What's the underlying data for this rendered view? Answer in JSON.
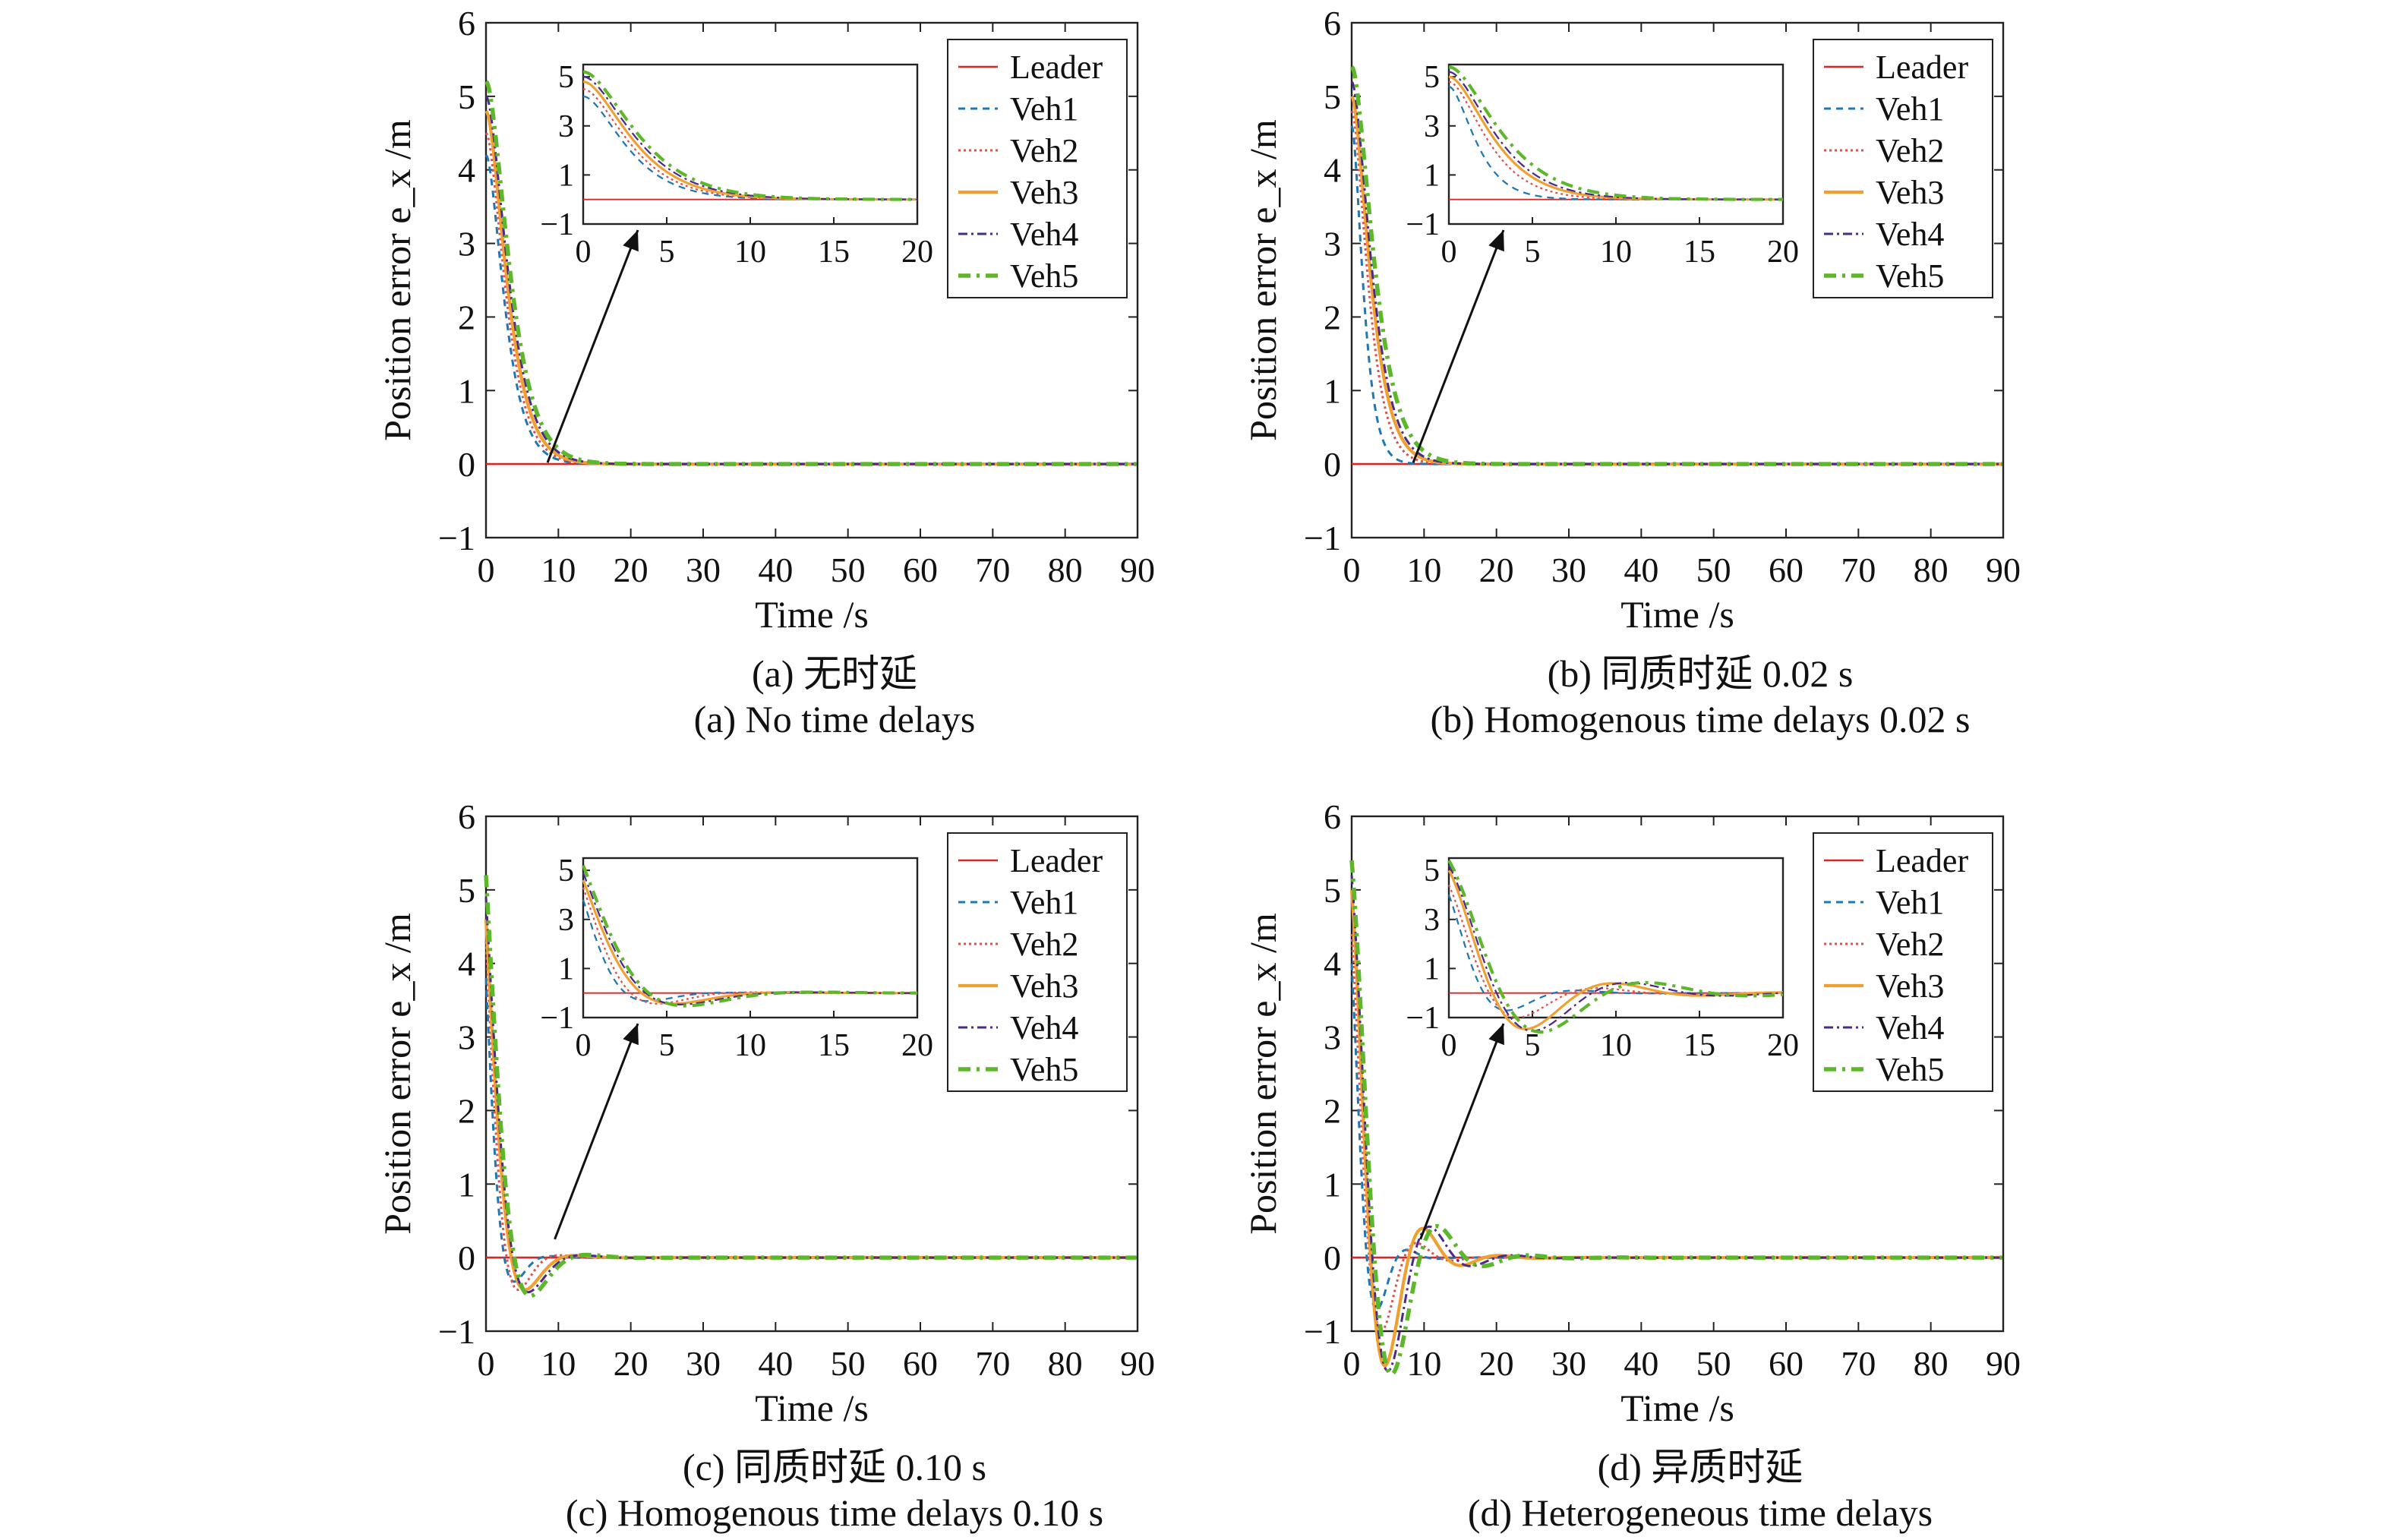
{
  "colors": {
    "Leader": "#d62728",
    "Veh1": "#1f77b4",
    "Veh2": "#d9534f",
    "Veh3": "#f0a030",
    "Veh4": "#4b2a8a",
    "Veh5": "#5cb82a"
  },
  "chart_data": [
    {
      "type": "line",
      "caption_cn": "(a) 无时延",
      "caption_en": "(a) No time delays",
      "xlabel": "Time /s",
      "ylabel": "Position error e_x /m",
      "xlim": [
        0,
        90
      ],
      "ylim": [
        -1,
        6
      ],
      "xticks": [
        "0",
        "10",
        "20",
        "30",
        "40",
        "50",
        "60",
        "70",
        "80",
        "90"
      ],
      "yticks": [
        "−1",
        "0",
        "1",
        "2",
        "3",
        "4",
        "5",
        "6"
      ],
      "inset": {
        "xlim": [
          0,
          20
        ],
        "ylim": [
          -1,
          5.5
        ],
        "xticks": [
          "0",
          "5",
          "10",
          "15",
          "20"
        ],
        "yticks": [
          "−1",
          "1",
          "3",
          "5"
        ]
      },
      "legend_position": "top-right",
      "series": [
        {
          "name": "Leader",
          "x0": 0,
          "tau": 1,
          "w": 0,
          "ph": 0
        },
        {
          "name": "Veh1",
          "x0": 4.2,
          "tau": 1.6,
          "w": 0,
          "ph": 0
        },
        {
          "name": "Veh2",
          "x0": 4.5,
          "tau": 1.7,
          "w": 0,
          "ph": 0
        },
        {
          "name": "Veh3",
          "x0": 4.8,
          "tau": 1.8,
          "w": 0,
          "ph": 0
        },
        {
          "name": "Veh4",
          "x0": 5.0,
          "tau": 1.9,
          "w": 0,
          "ph": 0
        },
        {
          "name": "Veh5",
          "x0": 5.2,
          "tau": 2.0,
          "w": 0,
          "ph": 0
        }
      ]
    },
    {
      "type": "line",
      "caption_cn": "(b) 同质时延 0.02 s",
      "caption_en": "(b) Homogenous time delays 0.02 s",
      "xlabel": "Time /s",
      "ylabel": "Position error e_x /m",
      "xlim": [
        0,
        90
      ],
      "ylim": [
        -1,
        6
      ],
      "xticks": [
        "0",
        "10",
        "20",
        "30",
        "40",
        "50",
        "60",
        "70",
        "80",
        "90"
      ],
      "yticks": [
        "−1",
        "0",
        "1",
        "2",
        "3",
        "4",
        "5",
        "6"
      ],
      "inset": {
        "xlim": [
          0,
          20
        ],
        "ylim": [
          -1,
          5.5
        ],
        "xticks": [
          "0",
          "5",
          "10",
          "15",
          "20"
        ],
        "yticks": [
          "−1",
          "1",
          "3",
          "5"
        ]
      },
      "legend_position": "top-right",
      "series": [
        {
          "name": "Leader",
          "x0": 0,
          "tau": 1,
          "w": 0,
          "ph": 0
        },
        {
          "name": "Veh1",
          "x0": 4.6,
          "tau": 1.0,
          "w": 0,
          "ph": 0
        },
        {
          "name": "Veh2",
          "x0": 4.8,
          "tau": 1.4,
          "w": 0,
          "ph": 0
        },
        {
          "name": "Veh3",
          "x0": 5.0,
          "tau": 1.6,
          "w": 0,
          "ph": 0
        },
        {
          "name": "Veh4",
          "x0": 5.2,
          "tau": 1.7,
          "w": 0,
          "ph": 0
        },
        {
          "name": "Veh5",
          "x0": 5.4,
          "tau": 1.9,
          "w": 0,
          "ph": 0
        }
      ]
    },
    {
      "type": "line",
      "caption_cn": "(c) 同质时延 0.10 s",
      "caption_en": "(c) Homogenous time delays 0.10 s",
      "xlabel": "Time /s",
      "ylabel": "Position error e_x /m",
      "xlim": [
        0,
        90
      ],
      "ylim": [
        -1,
        6
      ],
      "xticks": [
        "0",
        "10",
        "20",
        "30",
        "40",
        "50",
        "60",
        "70",
        "80",
        "90"
      ],
      "yticks": [
        "−1",
        "0",
        "1",
        "2",
        "3",
        "4",
        "5",
        "6"
      ],
      "inset": {
        "xlim": [
          0,
          20
        ],
        "ylim": [
          -1,
          5.5
        ],
        "xticks": [
          "0",
          "5",
          "10",
          "15",
          "20"
        ],
        "yticks": [
          "−1",
          "1",
          "3",
          "5"
        ]
      },
      "legend_position": "top-right",
      "series": [
        {
          "name": "Leader",
          "x0": 0,
          "tau": 1,
          "w": 0,
          "ph": 0
        },
        {
          "name": "Veh1",
          "x0": 3.8,
          "tau": 1.8,
          "w": 0.62,
          "ph": 0
        },
        {
          "name": "Veh2",
          "x0": 4.3,
          "tau": 2.2,
          "w": 0.55,
          "ph": 0
        },
        {
          "name": "Veh3",
          "x0": 4.6,
          "tau": 2.6,
          "w": 0.45,
          "ph": 0
        },
        {
          "name": "Veh4",
          "x0": 4.9,
          "tau": 2.8,
          "w": 0.42,
          "ph": 0
        },
        {
          "name": "Veh5",
          "x0": 5.2,
          "tau": 3.0,
          "w": 0.4,
          "ph": 0
        }
      ]
    },
    {
      "type": "line",
      "caption_cn": "(d) 异质时延",
      "caption_en": "(d) Heterogeneous time delays",
      "xlabel": "Time /s",
      "ylabel": "Position error e_x /m",
      "xlim": [
        0,
        90
      ],
      "ylim": [
        -1,
        6
      ],
      "xticks": [
        "0",
        "10",
        "20",
        "30",
        "40",
        "50",
        "60",
        "70",
        "80",
        "90"
      ],
      "yticks": [
        "−1",
        "0",
        "1",
        "2",
        "3",
        "4",
        "5",
        "6"
      ],
      "inset": {
        "xlim": [
          0,
          20
        ],
        "ylim": [
          -1,
          5.5
        ],
        "xticks": [
          "0",
          "5",
          "10",
          "15",
          "20"
        ],
        "yticks": [
          "−1",
          "1",
          "3",
          "5"
        ]
      },
      "legend_position": "top-right",
      "series": [
        {
          "name": "Leader",
          "x0": 0,
          "tau": 1,
          "w": 0,
          "ph": 0
        },
        {
          "name": "Veh1",
          "x0": 4.0,
          "tau": 2.2,
          "w": 0.75,
          "ph": 0
        },
        {
          "name": "Veh2",
          "x0": 4.4,
          "tau": 3.0,
          "w": 0.65,
          "ph": 0
        },
        {
          "name": "Veh3",
          "x0": 5.0,
          "tau": 4.0,
          "w": 0.6,
          "ph": 0
        },
        {
          "name": "Veh4",
          "x0": 5.2,
          "tau": 4.4,
          "w": 0.55,
          "ph": 0
        },
        {
          "name": "Veh5",
          "x0": 5.4,
          "tau": 4.8,
          "w": 0.5,
          "ph": 0
        }
      ]
    }
  ]
}
